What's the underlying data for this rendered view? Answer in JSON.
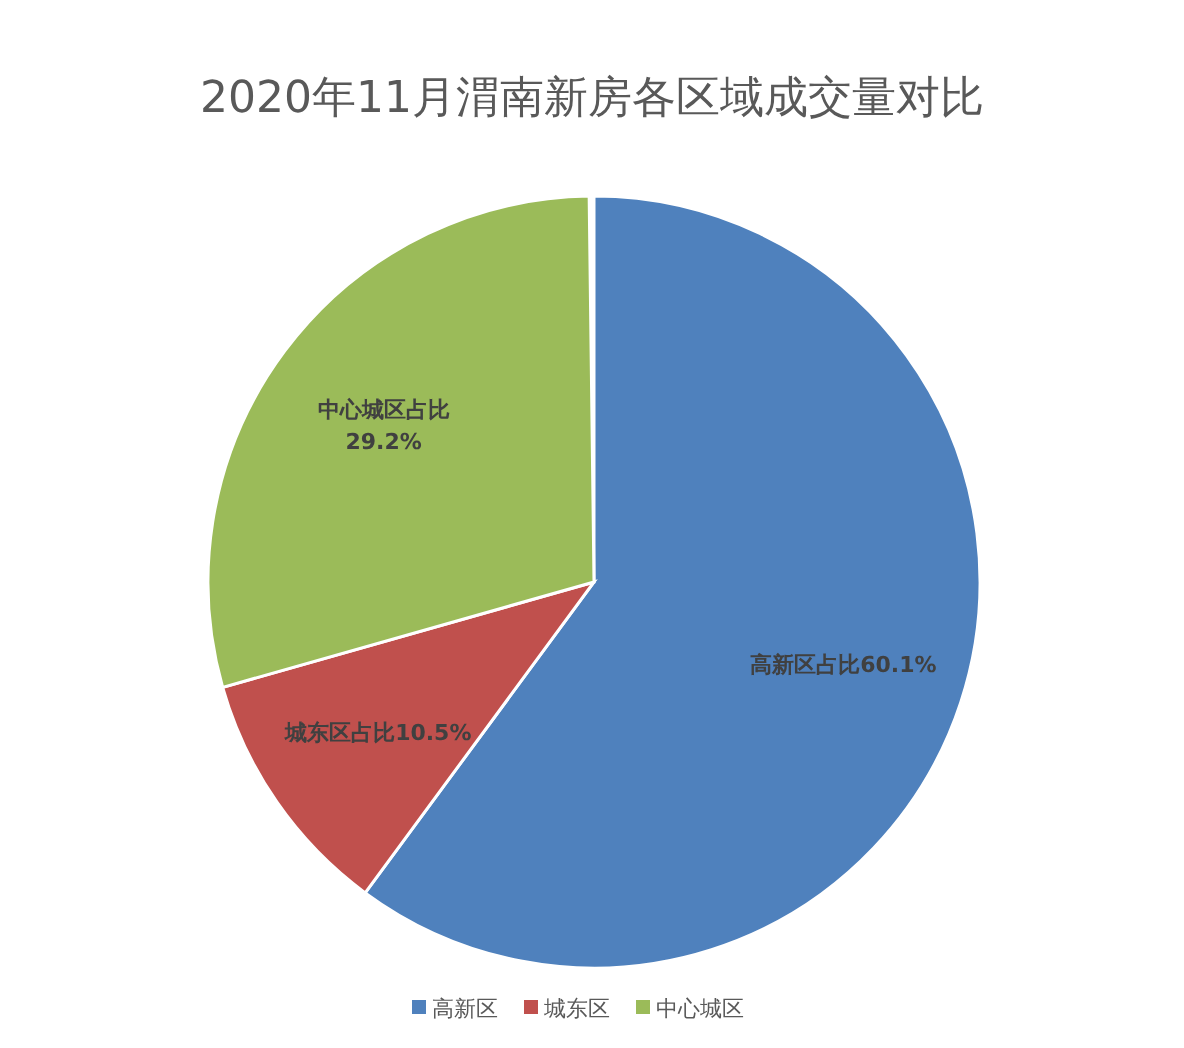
{
  "chart_data": {
    "type": "pie",
    "title": "2020年11月渭南新房各区域成交量对比",
    "categories": [
      "高新区",
      "城东区",
      "中心城区"
    ],
    "values": [
      60.1,
      10.5,
      29.2
    ],
    "colors": [
      "#4f81bd",
      "#c0504d",
      "#9bbb59"
    ],
    "value_labels": [
      "高新区占比60.1%",
      "城东区占比10.5%",
      "中心城区占比\n29.2%"
    ],
    "legend": "bottom"
  }
}
